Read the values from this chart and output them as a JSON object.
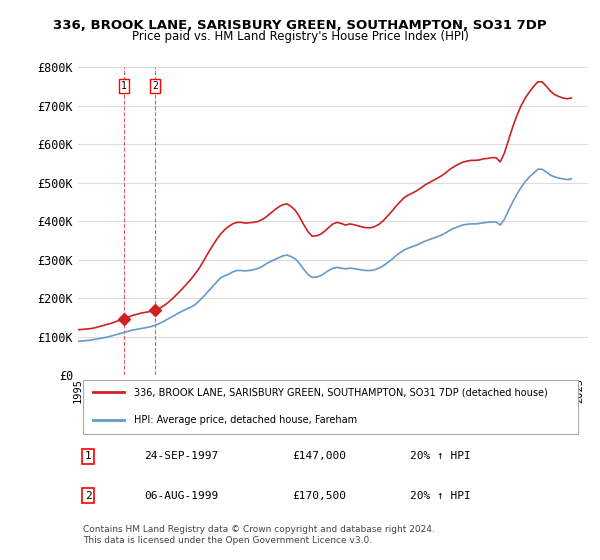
{
  "title": "336, BROOK LANE, SARISBURY GREEN, SOUTHAMPTON, SO31 7DP",
  "subtitle": "Price paid vs. HM Land Registry's House Price Index (HPI)",
  "xlabel": "",
  "ylabel": "",
  "ylim": [
    0,
    800000
  ],
  "yticks": [
    0,
    100000,
    200000,
    300000,
    400000,
    500000,
    600000,
    700000,
    800000
  ],
  "ytick_labels": [
    "£0",
    "£100K",
    "£200K",
    "£300K",
    "£400K",
    "£500K",
    "£600K",
    "£700K",
    "£800K"
  ],
  "xlim_start": 1995.0,
  "xlim_end": 2025.5,
  "background_color": "#ffffff",
  "grid_color": "#dddddd",
  "hpi_color": "#6699cc",
  "price_color": "#cc2222",
  "transactions": [
    {
      "year": 1997.73,
      "price": 147000,
      "label": "1"
    },
    {
      "year": 1999.59,
      "price": 170500,
      "label": "2"
    }
  ],
  "transaction_table": [
    {
      "num": "1",
      "date": "24-SEP-1997",
      "price": "£147,000",
      "hpi": "20% ↑ HPI"
    },
    {
      "num": "2",
      "date": "06-AUG-1999",
      "price": "£170,500",
      "hpi": "20% ↑ HPI"
    }
  ],
  "legend_line1": "336, BROOK LANE, SARISBURY GREEN, SOUTHAMPTON, SO31 7DP (detached house)",
  "legend_line2": "HPI: Average price, detached house, Fareham",
  "copyright": "Contains HM Land Registry data © Crown copyright and database right 2024.\nThis data is licensed under the Open Government Licence v3.0.",
  "hpi_data_x": [
    1995.0,
    1995.25,
    1995.5,
    1995.75,
    1996.0,
    1996.25,
    1996.5,
    1996.75,
    1997.0,
    1997.25,
    1997.5,
    1997.75,
    1998.0,
    1998.25,
    1998.5,
    1998.75,
    1999.0,
    1999.25,
    1999.5,
    1999.75,
    2000.0,
    2000.25,
    2000.5,
    2000.75,
    2001.0,
    2001.25,
    2001.5,
    2001.75,
    2002.0,
    2002.25,
    2002.5,
    2002.75,
    2003.0,
    2003.25,
    2003.5,
    2003.75,
    2004.0,
    2004.25,
    2004.5,
    2004.75,
    2005.0,
    2005.25,
    2005.5,
    2005.75,
    2006.0,
    2006.25,
    2006.5,
    2006.75,
    2007.0,
    2007.25,
    2007.5,
    2007.75,
    2008.0,
    2008.25,
    2008.5,
    2008.75,
    2009.0,
    2009.25,
    2009.5,
    2009.75,
    2010.0,
    2010.25,
    2010.5,
    2010.75,
    2011.0,
    2011.25,
    2011.5,
    2011.75,
    2012.0,
    2012.25,
    2012.5,
    2012.75,
    2013.0,
    2013.25,
    2013.5,
    2013.75,
    2014.0,
    2014.25,
    2014.5,
    2014.75,
    2015.0,
    2015.25,
    2015.5,
    2015.75,
    2016.0,
    2016.25,
    2016.5,
    2016.75,
    2017.0,
    2017.25,
    2017.5,
    2017.75,
    2018.0,
    2018.25,
    2018.5,
    2018.75,
    2019.0,
    2019.25,
    2019.5,
    2019.75,
    2020.0,
    2020.25,
    2020.5,
    2020.75,
    2021.0,
    2021.25,
    2021.5,
    2021.75,
    2022.0,
    2022.25,
    2022.5,
    2022.75,
    2023.0,
    2023.25,
    2023.5,
    2023.75,
    2024.0,
    2024.25,
    2024.5
  ],
  "hpi_data_y": [
    88000,
    89000,
    90000,
    91000,
    93000,
    95000,
    97000,
    99000,
    102000,
    105000,
    108000,
    111000,
    114000,
    117000,
    119000,
    121000,
    123000,
    125000,
    128000,
    132000,
    137000,
    143000,
    149000,
    155000,
    161000,
    167000,
    172000,
    177000,
    183000,
    193000,
    204000,
    216000,
    228000,
    240000,
    252000,
    258000,
    262000,
    268000,
    272000,
    272000,
    271000,
    272000,
    274000,
    277000,
    282000,
    289000,
    295000,
    300000,
    305000,
    310000,
    312000,
    308000,
    302000,
    290000,
    275000,
    262000,
    254000,
    255000,
    258000,
    265000,
    272000,
    278000,
    280000,
    278000,
    276000,
    278000,
    277000,
    275000,
    273000,
    272000,
    272000,
    274000,
    278000,
    284000,
    292000,
    300000,
    310000,
    318000,
    325000,
    330000,
    334000,
    338000,
    343000,
    348000,
    352000,
    356000,
    360000,
    364000,
    370000,
    377000,
    382000,
    386000,
    390000,
    392000,
    393000,
    393000,
    394000,
    396000,
    397000,
    398000,
    398000,
    390000,
    405000,
    428000,
    450000,
    470000,
    488000,
    503000,
    515000,
    525000,
    535000,
    535000,
    528000,
    520000,
    515000,
    512000,
    510000,
    508000,
    510000
  ],
  "price_data_x": [
    1995.0,
    1995.25,
    1995.5,
    1995.75,
    1996.0,
    1996.25,
    1996.5,
    1996.75,
    1997.0,
    1997.25,
    1997.5,
    1997.75,
    1998.0,
    1998.25,
    1998.5,
    1998.75,
    1999.0,
    1999.25,
    1999.5,
    1999.75,
    2000.0,
    2000.25,
    2000.5,
    2000.75,
    2001.0,
    2001.25,
    2001.5,
    2001.75,
    2002.0,
    2002.25,
    2002.5,
    2002.75,
    2003.0,
    2003.25,
    2003.5,
    2003.75,
    2004.0,
    2004.25,
    2004.5,
    2004.75,
    2005.0,
    2005.25,
    2005.5,
    2005.75,
    2006.0,
    2006.25,
    2006.5,
    2006.75,
    2007.0,
    2007.25,
    2007.5,
    2007.75,
    2008.0,
    2008.25,
    2008.5,
    2008.75,
    2009.0,
    2009.25,
    2009.5,
    2009.75,
    2010.0,
    2010.25,
    2010.5,
    2010.75,
    2011.0,
    2011.25,
    2011.5,
    2011.75,
    2012.0,
    2012.25,
    2012.5,
    2012.75,
    2013.0,
    2013.25,
    2013.5,
    2013.75,
    2014.0,
    2014.25,
    2014.5,
    2014.75,
    2015.0,
    2015.25,
    2015.5,
    2015.75,
    2016.0,
    2016.25,
    2016.5,
    2016.75,
    2017.0,
    2017.25,
    2017.5,
    2017.75,
    2018.0,
    2018.25,
    2018.5,
    2018.75,
    2019.0,
    2019.25,
    2019.5,
    2019.75,
    2020.0,
    2020.25,
    2020.5,
    2020.75,
    2021.0,
    2021.25,
    2021.5,
    2021.75,
    2022.0,
    2022.25,
    2022.5,
    2022.75,
    2023.0,
    2023.25,
    2023.5,
    2023.75,
    2024.0,
    2024.25,
    2024.5
  ],
  "price_data_y": [
    118000,
    119000,
    120000,
    121000,
    123000,
    126000,
    129000,
    132000,
    135000,
    139000,
    143000,
    147000,
    151000,
    155000,
    158000,
    161000,
    163000,
    165000,
    168000,
    172000,
    177000,
    184000,
    193000,
    203000,
    214000,
    225000,
    237000,
    249000,
    263000,
    278000,
    296000,
    315000,
    333000,
    350000,
    365000,
    377000,
    386000,
    393000,
    397000,
    397000,
    395000,
    396000,
    397000,
    399000,
    404000,
    411000,
    420000,
    429000,
    437000,
    443000,
    445000,
    438000,
    428000,
    411000,
    391000,
    373000,
    361000,
    362000,
    366000,
    374000,
    384000,
    393000,
    397000,
    394000,
    390000,
    393000,
    391000,
    388000,
    385000,
    383000,
    383000,
    386000,
    392000,
    401000,
    413000,
    425000,
    438000,
    450000,
    461000,
    468000,
    473000,
    479000,
    486000,
    494000,
    500000,
    506000,
    512000,
    518000,
    526000,
    535000,
    542000,
    548000,
    553000,
    556000,
    558000,
    558000,
    559000,
    562000,
    563000,
    565000,
    565000,
    554000,
    577000,
    611000,
    645000,
    675000,
    700000,
    720000,
    736000,
    750000,
    762000,
    762000,
    751000,
    738000,
    729000,
    724000,
    720000,
    718000,
    720000
  ]
}
